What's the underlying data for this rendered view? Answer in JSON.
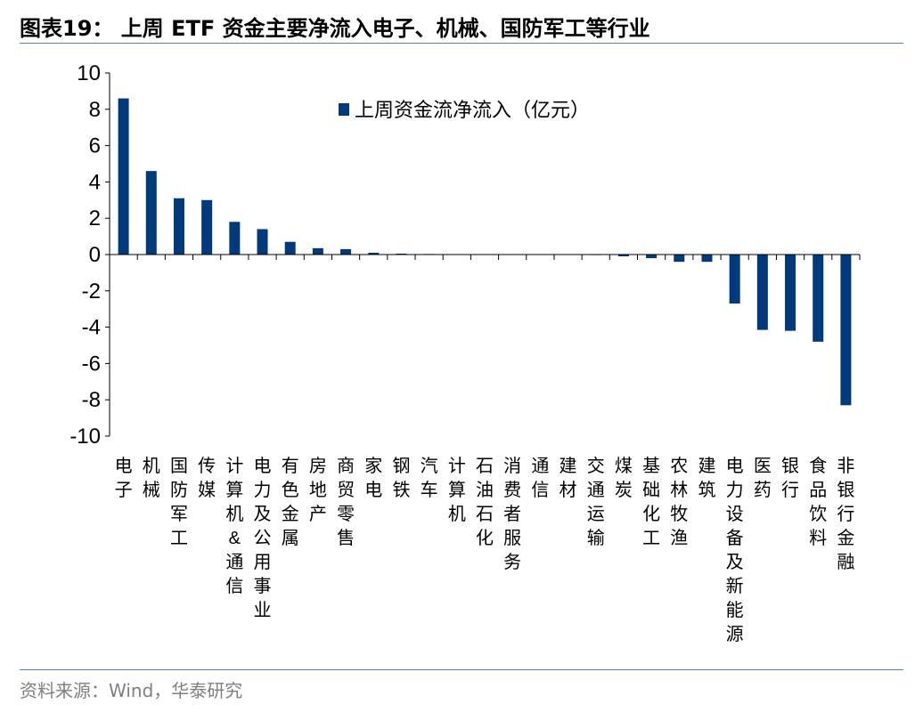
{
  "title": "图表19： 上周 ETF 资金主要净流入电子、机械、国防军工等行业",
  "source": "资料来源：Wind，华泰研究",
  "chart_data": {
    "type": "bar",
    "title": "",
    "xlabel": "",
    "ylabel": "",
    "ylim": [
      -10,
      10
    ],
    "yticks": [
      10,
      8,
      6,
      4,
      2,
      0,
      -2,
      -4,
      -6,
      -8,
      -10
    ],
    "grid": false,
    "legend_position": "top-center",
    "bar_color": "#003a7e",
    "categories": [
      "电子",
      "机械",
      "国防军工",
      "传媒",
      "计算机&通信",
      "电力及公用事业",
      "有色金属",
      "房地产",
      "商贸零售",
      "家电",
      "钢铁",
      "汽车",
      "计算机",
      "石油石化",
      "消费者服务",
      "通信",
      "建材",
      "交通运输",
      "煤炭",
      "基础化工",
      "农林牧渔",
      "建筑",
      "电力设备及新能源",
      "医药",
      "银行",
      "食品饮料",
      "非银行金融"
    ],
    "series": [
      {
        "name": "上周资金流净流入（亿元）",
        "values": [
          8.6,
          4.6,
          3.1,
          3.0,
          1.8,
          1.4,
          0.7,
          0.35,
          0.3,
          0.1,
          0.05,
          0.03,
          0.0,
          0.0,
          0.0,
          -0.02,
          -0.02,
          -0.03,
          -0.1,
          -0.2,
          -0.4,
          -0.4,
          -2.7,
          -4.15,
          -4.2,
          -4.8,
          -8.3
        ]
      }
    ]
  }
}
